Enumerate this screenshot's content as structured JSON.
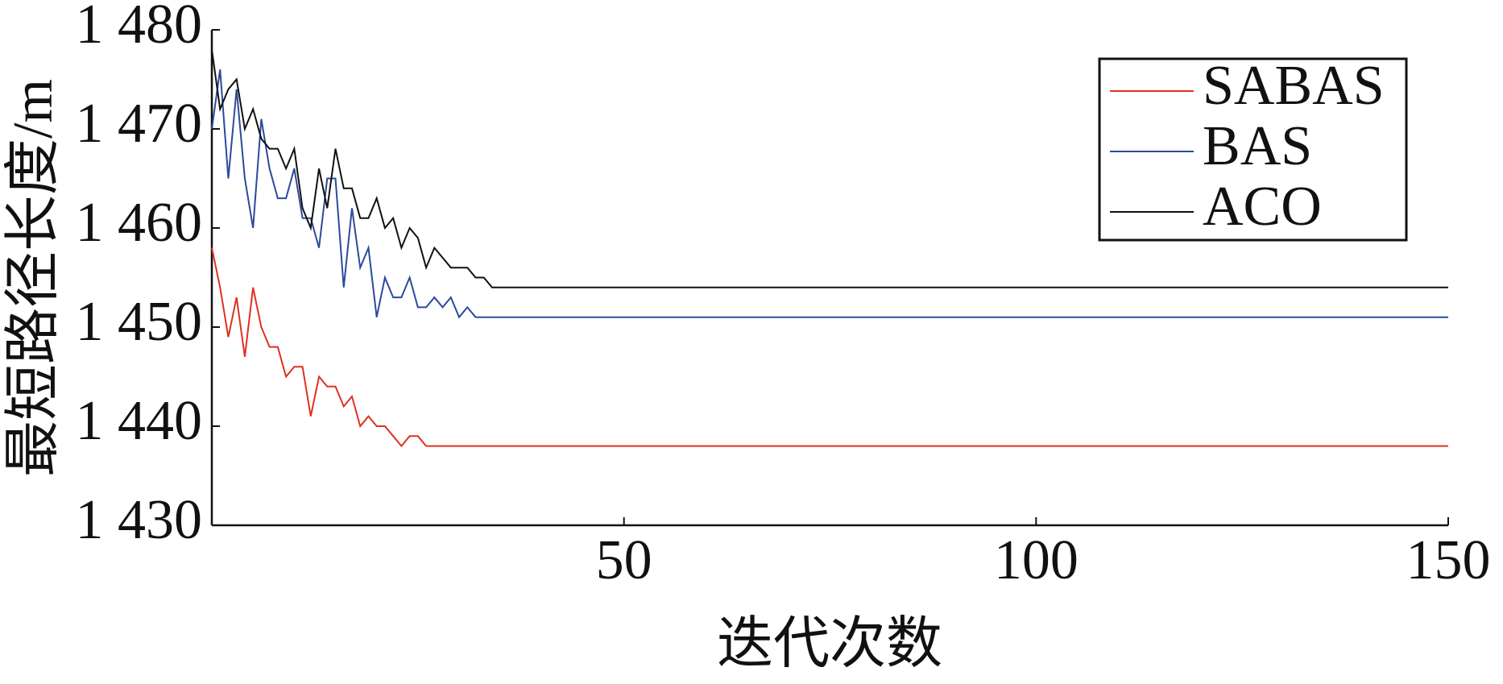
{
  "chart_data": {
    "type": "line",
    "x_label": "迭代次数",
    "y_label": "最短路径长度/m",
    "x": [
      0,
      1,
      2,
      3,
      4,
      5,
      6,
      7,
      8,
      9,
      10,
      11,
      12,
      13,
      14,
      15,
      16,
      17,
      18,
      19,
      20,
      21,
      22,
      23,
      24,
      25,
      26,
      27,
      28,
      29,
      30,
      31,
      32,
      33,
      34,
      35,
      150
    ],
    "series": [
      {
        "name": "SABAS",
        "color": "#e0301e",
        "values": [
          1458,
          1454,
          1449,
          1453,
          1447,
          1454,
          1450,
          1448,
          1448,
          1445,
          1446,
          1446,
          1441,
          1445,
          1444,
          1444,
          1442,
          1443,
          1440,
          1441,
          1440,
          1440,
          1439,
          1438,
          1439,
          1439,
          1438,
          1438,
          1438,
          1438,
          1438,
          1438,
          1438,
          1438,
          1438,
          1438,
          1438
        ]
      },
      {
        "name": "BAS",
        "color": "#2b4a9b",
        "values": [
          1470,
          1476,
          1465,
          1474,
          1465,
          1460,
          1471,
          1466,
          1463,
          1463,
          1466,
          1461,
          1461,
          1458,
          1465,
          1465,
          1454,
          1462,
          1456,
          1458,
          1451,
          1455,
          1453,
          1453,
          1455,
          1452,
          1452,
          1453,
          1452,
          1453,
          1451,
          1452,
          1451,
          1451,
          1451,
          1451,
          1451
        ]
      },
      {
        "name": "ACO",
        "color": "#111111",
        "values": [
          1478,
          1472,
          1474,
          1475,
          1470,
          1472,
          1469,
          1468,
          1468,
          1466,
          1468,
          1462,
          1460,
          1466,
          1462,
          1468,
          1464,
          1464,
          1461,
          1461,
          1463,
          1460,
          1461,
          1458,
          1460,
          1459,
          1456,
          1458,
          1457,
          1456,
          1456,
          1456,
          1455,
          1455,
          1454,
          1454,
          1454
        ]
      }
    ],
    "xlim": [
      0,
      150
    ],
    "xticks": [
      50,
      100,
      150
    ],
    "ylim": [
      1430,
      1480
    ],
    "yticks": [
      {
        "value": 1430,
        "label": "1 430"
      },
      {
        "value": 1440,
        "label": "1 440"
      },
      {
        "value": 1450,
        "label": "1 450"
      },
      {
        "value": 1460,
        "label": "1 460"
      },
      {
        "value": 1470,
        "label": "1 470"
      },
      {
        "value": 1480,
        "label": "1 480"
      }
    ],
    "legend": "upper-right"
  }
}
